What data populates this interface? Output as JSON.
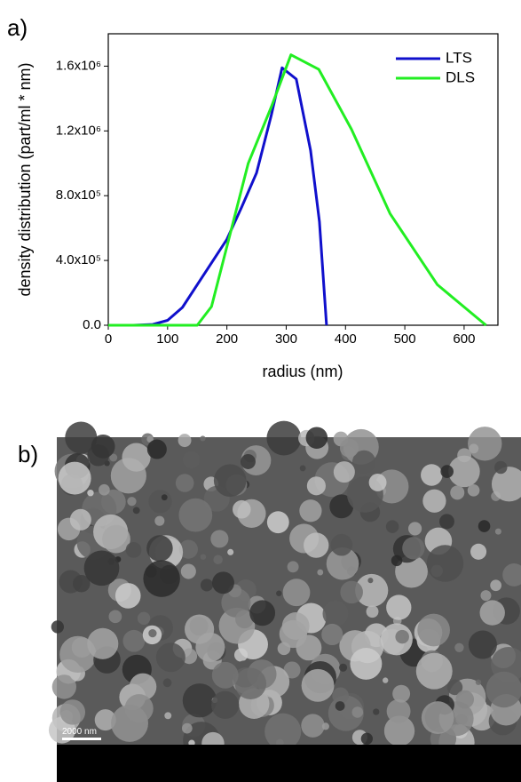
{
  "panel_labels": [
    "a)",
    "b)"
  ],
  "chart_data": {
    "type": "line",
    "xlabel": "radius (nm)",
    "ylabel": "density distribution (part/ml * nm)",
    "xlim": [
      0,
      657
    ],
    "ylim": [
      0,
      1800000
    ],
    "xticks": [
      0,
      100,
      200,
      300,
      400,
      500,
      600
    ],
    "yticks": [
      {
        "value": 0,
        "label": "0.0"
      },
      {
        "value": 400000,
        "label": "4.0x10⁵"
      },
      {
        "value": 800000,
        "label": "8.0x10⁵"
      },
      {
        "value": 1200000,
        "label": "1.2x10⁶"
      },
      {
        "value": 1600000,
        "label": "1.6x10⁶"
      }
    ],
    "legend": "upper right",
    "series": [
      {
        "name": "LTS",
        "color": "#1010cc",
        "x": [
          0,
          42,
          75,
          100,
          125,
          150,
          175,
          200,
          225,
          250,
          275,
          293,
          317,
          341,
          356,
          368
        ],
        "values": [
          0,
          0,
          5000,
          30000,
          110000,
          250000,
          390000,
          530000,
          730000,
          940000,
          1300000,
          1590000,
          1520000,
          1080000,
          640000,
          0
        ]
      },
      {
        "name": "DLS",
        "color": "#22ee22",
        "x": [
          0,
          150,
          174,
          236,
          275,
          308,
          355,
          410,
          475,
          555,
          637
        ],
        "values": [
          0,
          0,
          115000,
          1000000,
          1350000,
          1670000,
          1580000,
          1210000,
          690000,
          250000,
          0
        ]
      }
    ]
  },
  "image": {
    "scale_bar": "2000 nm"
  }
}
